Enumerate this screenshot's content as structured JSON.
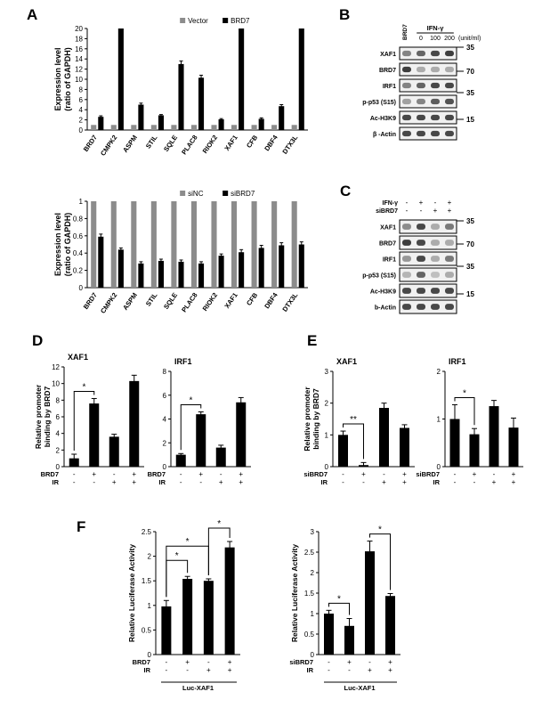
{
  "panel_labels": {
    "a": "A",
    "b": "B",
    "c": "C",
    "d": "D",
    "e": "E",
    "f": "F"
  },
  "colors": {
    "gray": "#8c8c8c",
    "black": "#000000",
    "band": "#2a2a2a",
    "blot": "#f1f1f1"
  },
  "chart_data": [
    {
      "id": "A1",
      "type": "bar",
      "ylabel": "Expression level (ratio of GAPDH)",
      "ylabel_lines": [
        "Expression level",
        "(ratio of GAPDH)"
      ],
      "ylim": [
        0,
        20
      ],
      "yticks": [
        "0",
        "2",
        "4",
        "6",
        "8",
        "10",
        "12",
        "14",
        "16",
        "18",
        "20"
      ],
      "categories": [
        "BRD7",
        "CMPK2",
        "ASPM",
        "STIL",
        "SQLE",
        "PLAC8",
        "RIOK2",
        "XAF1",
        "CFB",
        "DBF4",
        "DTX3L"
      ],
      "series": [
        {
          "name": "Vector",
          "color": "#8c8c8c",
          "values": [
            1,
            1,
            1,
            1,
            1,
            1,
            1,
            1,
            1,
            1,
            1
          ]
        },
        {
          "name": "BRD7",
          "color": "#000000",
          "values": [
            2.6,
            20,
            5.0,
            2.9,
            13.0,
            10.3,
            2.1,
            20,
            2.2,
            4.7,
            20
          ],
          "err": [
            0.2,
            0,
            0.3,
            0.15,
            0.6,
            0.5,
            0.15,
            0,
            0.2,
            0.3,
            0
          ]
        }
      ],
      "grid": false,
      "legend": "top"
    },
    {
      "id": "A2",
      "type": "bar",
      "ylabel": "Expression level (ratio of GAPDH)",
      "ylabel_lines": [
        "Expression level",
        "(ratio of GAPDH)"
      ],
      "ylim": [
        0,
        1
      ],
      "yticks": [
        "0",
        "0.2",
        "0.4",
        "0.6",
        "0.8",
        "1"
      ],
      "categories": [
        "BRD7",
        "CMPK2",
        "ASPM",
        "STIL",
        "SQLE",
        "PLAC8",
        "RIOK2",
        "XAF1",
        "CFB",
        "DBF4",
        "DTX3L"
      ],
      "series": [
        {
          "name": "siNC",
          "color": "#8c8c8c",
          "values": [
            1,
            1,
            1,
            1,
            1,
            1,
            1,
            1,
            1,
            1,
            1
          ]
        },
        {
          "name": "siBRD7",
          "color": "#000000",
          "values": [
            0.59,
            0.44,
            0.28,
            0.31,
            0.3,
            0.28,
            0.37,
            0.41,
            0.46,
            0.49,
            0.5
          ],
          "err": [
            0.03,
            0.02,
            0.02,
            0.02,
            0.02,
            0.02,
            0.02,
            0.03,
            0.03,
            0.03,
            0.03
          ]
        }
      ],
      "grid": false,
      "legend": "top"
    },
    {
      "id": "D1",
      "type": "bar",
      "title": "XAF1",
      "ylabel": "Relative promoter binding by BRD7",
      "ylabel_lines": [
        "Relative promoter",
        "binding by BRD7"
      ],
      "ylim": [
        0,
        12
      ],
      "yticks": [
        "0",
        "2",
        "4",
        "6",
        "8",
        "10",
        "12"
      ],
      "values": [
        1.0,
        7.6,
        3.6,
        10.3
      ],
      "err": [
        0.5,
        0.6,
        0.3,
        0.7
      ],
      "sig": [
        {
          "from": 0,
          "to": 1,
          "label": "*"
        }
      ],
      "rows": [
        {
          "label": "BRD7",
          "marks": [
            "-",
            "+",
            "-",
            "+"
          ]
        },
        {
          "label": "IR",
          "marks": [
            "-",
            "-",
            "+",
            "+"
          ]
        }
      ]
    },
    {
      "id": "D2",
      "type": "bar",
      "title": "IRF1",
      "ylim": [
        0,
        8
      ],
      "yticks": [
        "0",
        "2",
        "4",
        "6",
        "8"
      ],
      "values": [
        1.0,
        4.4,
        1.6,
        5.4
      ],
      "err": [
        0.1,
        0.2,
        0.2,
        0.4
      ],
      "sig": [
        {
          "from": 0,
          "to": 1,
          "label": "*"
        }
      ],
      "rows": [
        {
          "label": "BRD7",
          "marks": [
            "-",
            "+",
            "-",
            "+"
          ]
        },
        {
          "label": "IR",
          "marks": [
            "-",
            "-",
            "+",
            "+"
          ]
        }
      ]
    },
    {
      "id": "E1",
      "type": "bar",
      "title": "XAF1",
      "ylabel": "Relative promoter binding by BRD7",
      "ylabel_lines": [
        "Relative promoter",
        "binding by BRD7"
      ],
      "ylim": [
        0,
        3
      ],
      "yticks": [
        "0",
        "1",
        "2",
        "3"
      ],
      "values": [
        1.0,
        0.05,
        1.85,
        1.22
      ],
      "err": [
        0.12,
        0.08,
        0.15,
        0.1
      ],
      "sig": [
        {
          "from": 0,
          "to": 1,
          "label": "**"
        }
      ],
      "rows": [
        {
          "label": "siBRD7",
          "marks": [
            "-",
            "+",
            "-",
            "+"
          ]
        },
        {
          "label": "IR",
          "marks": [
            "-",
            "-",
            "+",
            "+"
          ]
        }
      ]
    },
    {
      "id": "E2",
      "type": "bar",
      "title": "IRF1",
      "ylim": [
        0,
        2
      ],
      "yticks": [
        "0",
        "1",
        "2"
      ],
      "values": [
        1.0,
        0.68,
        1.27,
        0.82
      ],
      "err": [
        0.3,
        0.12,
        0.12,
        0.2
      ],
      "sig": [
        {
          "from": 0,
          "to": 1,
          "label": "*"
        }
      ],
      "rows": [
        {
          "label": "siBRD7",
          "marks": [
            "-",
            "+",
            "-",
            "+"
          ]
        },
        {
          "label": "IR",
          "marks": [
            "-",
            "-",
            "+",
            "+"
          ]
        }
      ]
    },
    {
      "id": "F1",
      "type": "bar",
      "ylabel": "Relative Luciferase Activity",
      "ylim": [
        0,
        2.5
      ],
      "yticks": [
        "0",
        "0.5",
        "1",
        "1.5",
        "2",
        "2.5"
      ],
      "values": [
        0.98,
        1.54,
        1.5,
        2.18
      ],
      "err": [
        0.12,
        0.05,
        0.04,
        0.12
      ],
      "sig": [
        {
          "from": 0,
          "to": 1,
          "label": "*"
        },
        {
          "from": 0,
          "to": 2,
          "label": "*"
        },
        {
          "from": 2,
          "to": 3,
          "label": "*"
        }
      ],
      "rows": [
        {
          "label": "BRD7",
          "marks": [
            "-",
            "+",
            "-",
            "+"
          ]
        },
        {
          "label": "IR",
          "marks": [
            "-",
            "-",
            "+",
            "+"
          ]
        }
      ],
      "group_label": "Luc-XAF1"
    },
    {
      "id": "F2",
      "type": "bar",
      "ylabel": "Relative Luciferase Activity",
      "ylim": [
        0,
        3
      ],
      "yticks": [
        "0",
        "0.5",
        "1",
        "1.5",
        "2",
        "2.5",
        "3"
      ],
      "values": [
        1.0,
        0.7,
        2.52,
        1.43
      ],
      "err": [
        0.08,
        0.18,
        0.25,
        0.06
      ],
      "sig": [
        {
          "from": 0,
          "to": 1,
          "label": "*"
        },
        {
          "from": 2,
          "to": 3,
          "label": "*"
        }
      ],
      "rows": [
        {
          "label": "siBRD7",
          "marks": [
            "-",
            "+",
            "-",
            "+"
          ]
        },
        {
          "label": "IR",
          "marks": [
            "-",
            "-",
            "+",
            "+"
          ]
        }
      ],
      "group_label": "Luc-XAF1"
    }
  ],
  "blots": {
    "B": {
      "cols": [
        "BRD7",
        "0",
        "100",
        "200"
      ],
      "header": "IFN-γ",
      "unit": "(unit/ml)",
      "rows": [
        "XAF1",
        "BRD7",
        "IRF1",
        "p-p53 (S15)",
        "Ac-H3K9",
        "β -Actin"
      ],
      "markers": [
        "35",
        "70",
        "35",
        "15"
      ]
    },
    "C": {
      "rows_top": [
        {
          "label": "IFN-γ",
          "marks": [
            "-",
            "+",
            "-",
            "+"
          ]
        },
        {
          "label": "siBRD7",
          "marks": [
            "-",
            "-",
            "+",
            "+"
          ]
        }
      ],
      "rows": [
        "XAF1",
        "BRD7",
        "IRF1",
        "p-p53 (S15)",
        "Ac-H3K9",
        "b-Actin"
      ],
      "markers": [
        "35",
        "70",
        "35",
        "15"
      ]
    }
  }
}
